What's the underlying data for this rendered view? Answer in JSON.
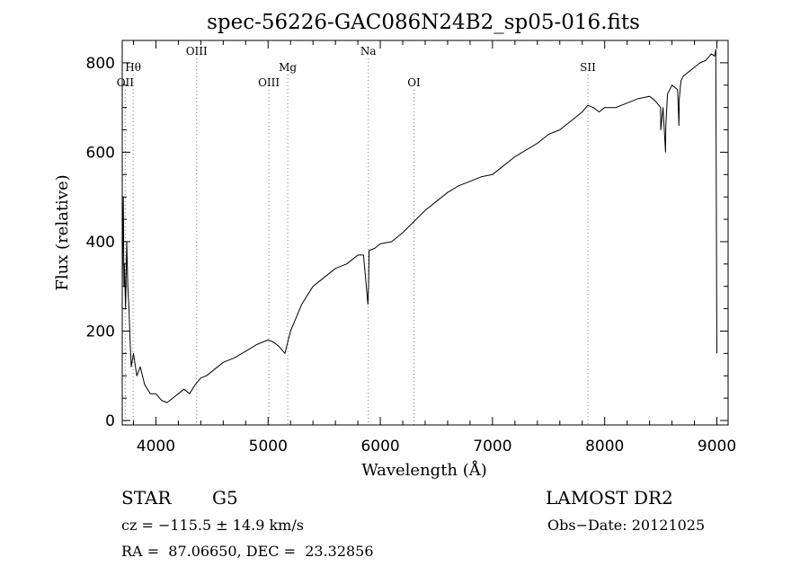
{
  "chart_data": {
    "type": "line",
    "title": "spec-56226-GAC086N24B2_sp05-016.fits",
    "xlabel": "Wavelength (Å)",
    "ylabel": "Flux (relative)",
    "xlim": [
      3700,
      9100
    ],
    "ylim": [
      -10,
      850
    ],
    "x_ticks": [
      4000,
      5000,
      6000,
      7000,
      8000,
      9000
    ],
    "y_ticks": [
      0,
      200,
      400,
      600,
      800
    ],
    "grid": false,
    "series_color": "#000000",
    "line_marker_color": "#808080",
    "spectral_lines": [
      {
        "label": "OII",
        "x": 3727,
        "row": 2
      },
      {
        "label": "Hθ",
        "x": 3797,
        "row": 1
      },
      {
        "label": "OIII",
        "x": 4363,
        "row": 0
      },
      {
        "label": "OIII",
        "x": 5007,
        "row": 2
      },
      {
        "label": "Mg",
        "x": 5175,
        "row": 1
      },
      {
        "label": "Na",
        "x": 5893,
        "row": 0
      },
      {
        "label": "OI",
        "x": 6300,
        "row": 2
      },
      {
        "label": "SII",
        "x": 7850,
        "row": 1
      }
    ],
    "series": [
      {
        "x": [
          3700,
          3710,
          3715,
          3720,
          3730,
          3740,
          3750,
          3760,
          3770,
          3780,
          3800,
          3830,
          3860,
          3900,
          3950,
          4000,
          4050,
          4100,
          4150,
          4200,
          4250,
          4300,
          4350,
          4400,
          4450,
          4500,
          4600,
          4700,
          4800,
          4900,
          5000,
          5050,
          5100,
          5150,
          5180,
          5200,
          5250,
          5300,
          5400,
          5500,
          5600,
          5700,
          5800,
          5850,
          5890,
          5895,
          5900,
          5950,
          6000,
          6100,
          6200,
          6300,
          6400,
          6500,
          6600,
          6700,
          6800,
          6900,
          7000,
          7100,
          7200,
          7300,
          7400,
          7500,
          7600,
          7700,
          7800,
          7850,
          7900,
          7950,
          8000,
          8100,
          8200,
          8300,
          8400,
          8450,
          8498,
          8500,
          8520,
          8542,
          8545,
          8560,
          8600,
          8650,
          8662,
          8665,
          8680,
          8700,
          8750,
          8800,
          8850,
          8900,
          8950,
          8980,
          8990,
          9000
        ],
        "y": [
          300,
          500,
          300,
          350,
          250,
          400,
          300,
          250,
          180,
          120,
          150,
          100,
          120,
          80,
          60,
          60,
          45,
          40,
          50,
          60,
          70,
          60,
          80,
          95,
          100,
          110,
          130,
          140,
          155,
          170,
          180,
          175,
          165,
          150,
          180,
          200,
          230,
          260,
          300,
          320,
          340,
          350,
          370,
          370,
          260,
          300,
          380,
          385,
          395,
          400,
          420,
          445,
          470,
          490,
          510,
          525,
          535,
          545,
          550,
          570,
          590,
          605,
          620,
          640,
          650,
          670,
          690,
          705,
          700,
          690,
          700,
          700,
          710,
          720,
          725,
          715,
          700,
          650,
          700,
          600,
          660,
          730,
          750,
          740,
          660,
          720,
          760,
          770,
          780,
          790,
          800,
          805,
          820,
          815,
          830,
          150
        ]
      }
    ]
  },
  "footer": {
    "object_class": "STAR",
    "subclass": "G5",
    "survey": "LAMOST DR2",
    "cz": "cz = −115.5 ± 14.9 km/s",
    "obs_date": "Obs−Date: 20121025",
    "coords": "RA =  87.06650, DEC =  23.32856"
  }
}
